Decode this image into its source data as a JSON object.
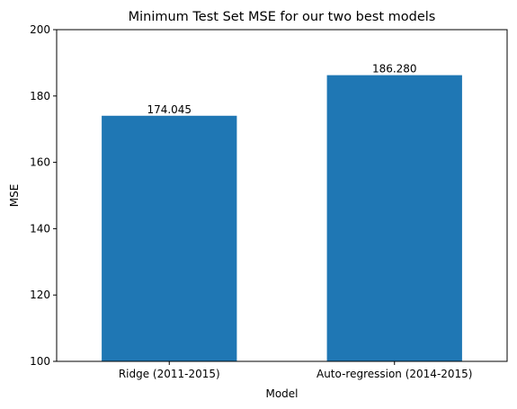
{
  "chart_data": {
    "type": "bar",
    "title": "Minimum Test Set MSE for our two best models",
    "xlabel": "Model",
    "ylabel": "MSE",
    "categories": [
      "Ridge (2011-2015)",
      "Auto-regression (2014-2015)"
    ],
    "values": [
      174.045,
      186.28
    ],
    "value_labels": [
      "174.045",
      "186.280"
    ],
    "ylim": [
      100,
      200
    ],
    "yticks": [
      100,
      120,
      140,
      160,
      180,
      200
    ],
    "bar_color": "#1f77b4",
    "grid": false
  }
}
